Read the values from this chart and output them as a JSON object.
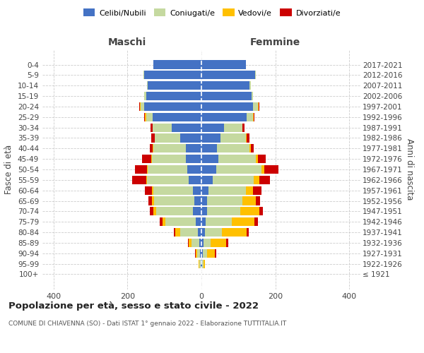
{
  "age_groups": [
    "100+",
    "95-99",
    "90-94",
    "85-89",
    "80-84",
    "75-79",
    "70-74",
    "65-69",
    "60-64",
    "55-59",
    "50-54",
    "45-49",
    "40-44",
    "35-39",
    "30-34",
    "25-29",
    "20-24",
    "15-19",
    "10-14",
    "5-9",
    "0-4"
  ],
  "birth_years": [
    "≤ 1921",
    "1922-1926",
    "1927-1931",
    "1932-1936",
    "1937-1941",
    "1942-1946",
    "1947-1951",
    "1952-1956",
    "1957-1961",
    "1962-1966",
    "1967-1971",
    "1972-1976",
    "1977-1981",
    "1982-1986",
    "1987-1991",
    "1992-1996",
    "1997-2001",
    "2002-2006",
    "2007-2011",
    "2012-2016",
    "2017-2021"
  ],
  "maschi": {
    "celibi": [
      0,
      2,
      3,
      5,
      10,
      15,
      22,
      20,
      22,
      35,
      38,
      42,
      42,
      58,
      80,
      132,
      155,
      150,
      145,
      155,
      130
    ],
    "coniugati": [
      0,
      3,
      8,
      22,
      48,
      82,
      100,
      108,
      108,
      112,
      108,
      92,
      88,
      68,
      52,
      18,
      10,
      4,
      3,
      2,
      0
    ],
    "vedovi": [
      0,
      2,
      5,
      8,
      12,
      8,
      8,
      5,
      3,
      2,
      2,
      2,
      1,
      1,
      0,
      2,
      2,
      0,
      0,
      0,
      0
    ],
    "divorziati": [
      0,
      0,
      2,
      2,
      5,
      8,
      10,
      10,
      20,
      38,
      32,
      25,
      8,
      8,
      5,
      2,
      2,
      0,
      0,
      0,
      0
    ]
  },
  "femmine": {
    "nubili": [
      0,
      2,
      3,
      5,
      10,
      12,
      15,
      15,
      20,
      30,
      40,
      45,
      42,
      52,
      62,
      122,
      140,
      135,
      130,
      145,
      120
    ],
    "coniugate": [
      0,
      3,
      12,
      20,
      45,
      70,
      90,
      95,
      100,
      112,
      122,
      102,
      88,
      68,
      48,
      18,
      12,
      4,
      3,
      2,
      0
    ],
    "vedove": [
      0,
      5,
      22,
      42,
      68,
      62,
      52,
      38,
      20,
      15,
      8,
      5,
      3,
      2,
      1,
      2,
      2,
      0,
      0,
      0,
      0
    ],
    "divorziate": [
      0,
      0,
      3,
      5,
      5,
      8,
      10,
      10,
      22,
      28,
      38,
      22,
      8,
      8,
      5,
      2,
      2,
      0,
      0,
      0,
      0
    ]
  },
  "colors": {
    "celibi": "#4472c4",
    "coniugati": "#c5d9a0",
    "vedovi": "#ffc000",
    "divorziati": "#cc0000"
  },
  "xlim": [
    -430,
    430
  ],
  "xticks": [
    -400,
    -200,
    0,
    200,
    400
  ],
  "xticklabels": [
    "400",
    "200",
    "0",
    "200",
    "400"
  ],
  "title": "Popolazione per età, sesso e stato civile - 2022",
  "subtitle": "COMUNE DI CHIAVENNA (SO) - Dati ISTAT 1° gennaio 2022 - Elaborazione TUTTITALIA.IT",
  "ylabel_left": "Fasce di età",
  "ylabel_right": "Anni di nascita",
  "maschi_label": "Maschi",
  "femmine_label": "Femmine",
  "legend_labels": [
    "Celibi/Nubili",
    "Coniugati/e",
    "Vedovi/e",
    "Divorziati/e"
  ],
  "background_color": "#ffffff",
  "grid_color": "#cccccc"
}
